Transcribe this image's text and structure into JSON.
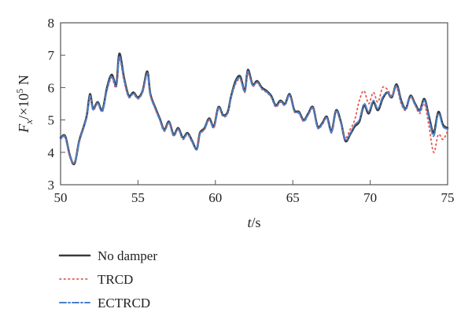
{
  "chart_data": {
    "type": "line",
    "title": "",
    "xlabel": {
      "italic": "t",
      "rest": "/s"
    },
    "ylabel": {
      "italic": "F",
      "sub": "x",
      "mid": "/×10",
      "sup": "5",
      "unit": " N"
    },
    "xlim": [
      50,
      75
    ],
    "ylim": [
      3,
      8
    ],
    "xticks": [
      50,
      55,
      60,
      65,
      70,
      75
    ],
    "yticks": [
      3,
      4,
      5,
      6,
      7,
      8
    ],
    "grid": false,
    "legend": {
      "placement": "below-left"
    },
    "series": [
      {
        "name": "No damper",
        "color": "#3a3a3a",
        "style": "solid",
        "x": [
          50.0,
          50.3,
          50.6,
          50.9,
          51.2,
          51.5,
          51.7,
          51.9,
          52.1,
          52.4,
          52.7,
          53.0,
          53.3,
          53.6,
          53.8,
          54.1,
          54.4,
          54.7,
          55.0,
          55.3,
          55.6,
          55.8,
          56.1,
          56.4,
          56.7,
          57.0,
          57.3,
          57.6,
          57.9,
          58.2,
          58.5,
          58.8,
          59.0,
          59.3,
          59.6,
          59.9,
          60.2,
          60.5,
          60.8,
          61.0,
          61.3,
          61.6,
          61.9,
          62.1,
          62.4,
          62.7,
          63.0,
          63.3,
          63.6,
          63.9,
          64.2,
          64.5,
          64.8,
          65.1,
          65.4,
          65.7,
          66.0,
          66.3,
          66.6,
          66.9,
          67.2,
          67.5,
          67.8,
          68.1,
          68.4,
          68.7,
          69.0,
          69.3,
          69.6,
          69.9,
          70.2,
          70.5,
          70.8,
          71.1,
          71.4,
          71.7,
          72.0,
          72.3,
          72.6,
          72.9,
          73.2,
          73.5,
          73.8,
          74.1,
          74.4,
          74.7,
          75.0
        ],
        "values": [
          4.45,
          4.5,
          3.9,
          3.65,
          4.35,
          4.8,
          5.15,
          5.8,
          5.35,
          5.55,
          5.3,
          6.0,
          6.4,
          6.1,
          7.05,
          6.3,
          5.75,
          5.85,
          5.7,
          5.9,
          6.5,
          5.8,
          5.4,
          5.05,
          4.7,
          4.95,
          4.55,
          4.75,
          4.45,
          4.6,
          4.35,
          4.1,
          4.6,
          4.75,
          5.05,
          4.8,
          5.4,
          5.15,
          5.25,
          5.7,
          6.2,
          6.35,
          5.9,
          6.55,
          6.1,
          6.2,
          6.0,
          5.9,
          5.75,
          5.45,
          5.6,
          5.5,
          5.8,
          5.3,
          5.25,
          5.0,
          5.2,
          5.4,
          4.8,
          4.9,
          5.1,
          4.65,
          5.3,
          4.95,
          4.35,
          4.55,
          4.8,
          4.95,
          5.45,
          5.2,
          5.55,
          5.3,
          5.65,
          5.85,
          5.7,
          6.1,
          5.6,
          5.35,
          5.75,
          5.5,
          5.3,
          5.65,
          5.1,
          4.6,
          5.25,
          4.85,
          4.75
        ]
      },
      {
        "name": "TRCD",
        "color": "#e8554e",
        "style": "dotted",
        "x": [
          50.0,
          50.3,
          50.6,
          50.9,
          51.2,
          51.5,
          51.7,
          51.9,
          52.1,
          52.4,
          52.7,
          53.0,
          53.3,
          53.6,
          53.8,
          54.1,
          54.4,
          54.7,
          55.0,
          55.3,
          55.6,
          55.8,
          56.1,
          56.4,
          56.7,
          57.0,
          57.3,
          57.6,
          57.9,
          58.2,
          58.5,
          58.8,
          59.0,
          59.3,
          59.6,
          59.9,
          60.2,
          60.5,
          60.8,
          61.0,
          61.3,
          61.6,
          61.9,
          62.1,
          62.4,
          62.7,
          63.0,
          63.3,
          63.6,
          63.9,
          64.2,
          64.5,
          64.8,
          65.1,
          65.4,
          65.7,
          66.0,
          66.3,
          66.6,
          66.9,
          67.2,
          67.5,
          67.8,
          68.1,
          68.4,
          68.7,
          69.0,
          69.3,
          69.6,
          69.9,
          70.2,
          70.5,
          70.8,
          71.1,
          71.4,
          71.7,
          72.0,
          72.3,
          72.6,
          72.9,
          73.2,
          73.5,
          73.8,
          74.1,
          74.4,
          74.7,
          75.0
        ],
        "values": [
          4.4,
          4.45,
          3.85,
          3.7,
          4.3,
          4.75,
          5.1,
          5.7,
          5.3,
          5.5,
          5.25,
          5.9,
          6.3,
          6.0,
          6.9,
          6.2,
          5.7,
          5.8,
          5.65,
          5.85,
          6.4,
          5.75,
          5.35,
          5.0,
          4.65,
          4.9,
          4.5,
          4.7,
          4.4,
          4.55,
          4.3,
          4.1,
          4.55,
          4.7,
          5.0,
          4.75,
          5.35,
          5.1,
          5.2,
          5.65,
          6.1,
          6.25,
          5.85,
          6.45,
          6.05,
          6.15,
          5.95,
          5.85,
          5.7,
          5.4,
          5.55,
          5.45,
          5.75,
          5.25,
          5.2,
          4.95,
          5.15,
          5.35,
          4.75,
          4.85,
          5.05,
          4.6,
          5.25,
          4.9,
          4.45,
          4.7,
          5.0,
          5.6,
          5.9,
          5.5,
          5.85,
          5.55,
          6.0,
          5.95,
          5.75,
          6.0,
          5.5,
          5.3,
          5.7,
          5.45,
          5.2,
          5.5,
          4.8,
          4.0,
          4.55,
          4.4,
          4.65
        ]
      },
      {
        "name": "ECTRCD",
        "color": "#4a7fc8",
        "style": "dash-dot",
        "x": [
          50.0,
          50.3,
          50.6,
          50.9,
          51.2,
          51.5,
          51.7,
          51.9,
          52.1,
          52.4,
          52.7,
          53.0,
          53.3,
          53.6,
          53.8,
          54.1,
          54.4,
          54.7,
          55.0,
          55.3,
          55.6,
          55.8,
          56.1,
          56.4,
          56.7,
          57.0,
          57.3,
          57.6,
          57.9,
          58.2,
          58.5,
          58.8,
          59.0,
          59.3,
          59.6,
          59.9,
          60.2,
          60.5,
          60.8,
          61.0,
          61.3,
          61.6,
          61.9,
          62.1,
          62.4,
          62.7,
          63.0,
          63.3,
          63.6,
          63.9,
          64.2,
          64.5,
          64.8,
          65.1,
          65.4,
          65.7,
          66.0,
          66.3,
          66.6,
          66.9,
          67.2,
          67.5,
          67.8,
          68.1,
          68.4,
          68.7,
          69.0,
          69.3,
          69.6,
          69.9,
          70.2,
          70.5,
          70.8,
          71.1,
          71.4,
          71.7,
          72.0,
          72.3,
          72.6,
          72.9,
          73.2,
          73.5,
          73.8,
          74.1,
          74.4,
          74.7,
          75.0
        ],
        "values": [
          4.42,
          4.48,
          3.88,
          3.68,
          4.33,
          4.78,
          5.12,
          5.75,
          5.32,
          5.52,
          5.27,
          5.95,
          6.35,
          6.05,
          6.95,
          6.25,
          5.72,
          5.82,
          5.67,
          5.87,
          6.45,
          5.77,
          5.37,
          5.02,
          4.67,
          4.92,
          4.52,
          4.72,
          4.42,
          4.57,
          4.32,
          4.08,
          4.57,
          4.72,
          5.02,
          4.77,
          5.37,
          5.12,
          5.22,
          5.67,
          6.15,
          6.3,
          5.87,
          6.5,
          6.07,
          6.17,
          5.97,
          5.87,
          5.72,
          5.42,
          5.57,
          5.47,
          5.77,
          5.27,
          5.22,
          4.97,
          5.17,
          5.37,
          4.77,
          4.87,
          5.07,
          4.62,
          5.27,
          4.92,
          4.38,
          4.58,
          4.85,
          5.0,
          5.5,
          5.25,
          5.6,
          5.35,
          5.7,
          5.85,
          5.72,
          6.05,
          5.55,
          5.32,
          5.72,
          5.47,
          5.27,
          5.6,
          5.05,
          4.5,
          5.2,
          4.8,
          4.72
        ]
      }
    ]
  }
}
